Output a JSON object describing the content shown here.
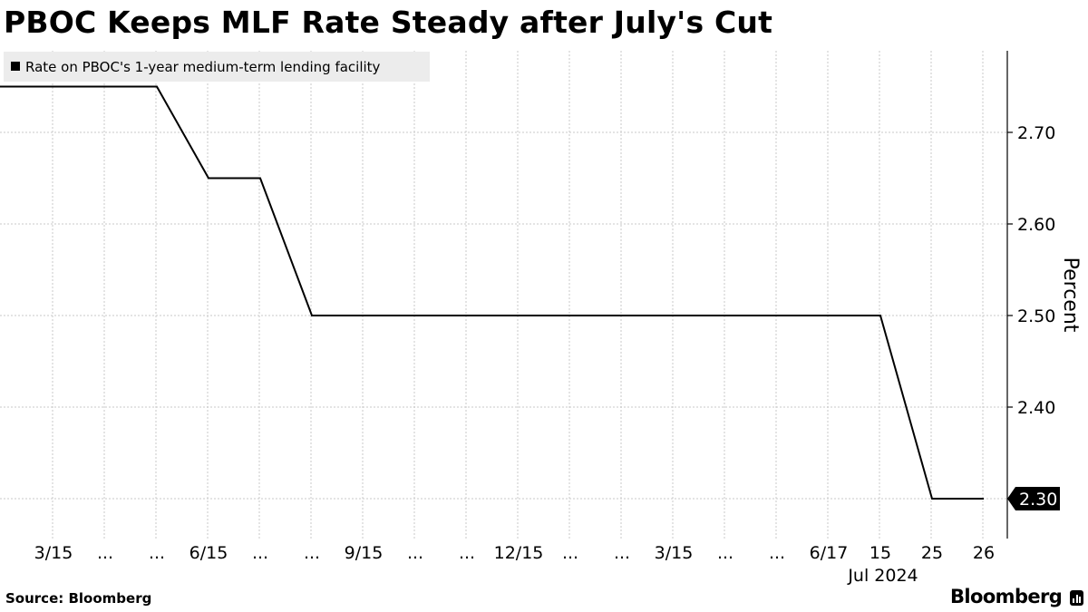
{
  "title": "PBOC Keeps MLF Rate Steady after July's Cut",
  "source": "Source: Bloomberg",
  "brand": "Bloomberg",
  "chart_data": {
    "type": "line",
    "title": "PBOC Keeps MLF Rate Steady after July's Cut",
    "ylabel": "Percent",
    "xlabel": "",
    "ylim": [
      2.27,
      2.79
    ],
    "yticks": [
      "2.70",
      "2.60",
      "2.50",
      "2.40",
      "2.30"
    ],
    "categories": [
      "3/15",
      "...",
      "...",
      "6/15",
      "...",
      "...",
      "9/15",
      "...",
      "...",
      "12/15",
      "...",
      "...",
      "3/15",
      "...",
      "...",
      "6/17",
      "15",
      "25",
      "26"
    ],
    "x_group_label": "Jul 2024",
    "series": [
      {
        "name": "Rate on PBOC's 1-year medium-term lending facility",
        "values": [
          2.75,
          2.75,
          2.75,
          2.65,
          2.65,
          2.5,
          2.5,
          2.5,
          2.5,
          2.5,
          2.5,
          2.5,
          2.5,
          2.5,
          2.5,
          2.5,
          2.5,
          2.3,
          2.3
        ]
      }
    ],
    "last_value_label": "2.30",
    "grid": true,
    "legend_position": "top-left",
    "colors": {
      "line": "#000000",
      "grid": "#c8c8c8",
      "legend_background": "#ececec"
    }
  }
}
